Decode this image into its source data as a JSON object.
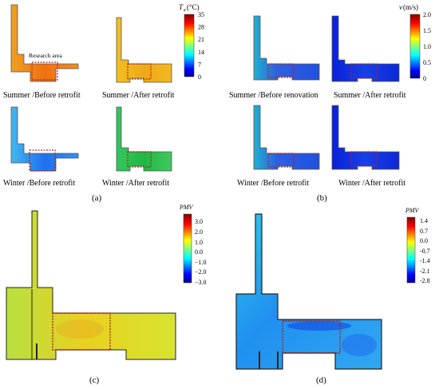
{
  "panel_a": {
    "label": "(a)",
    "research_area_label": "Research area",
    "captions": [
      "Summer /Before retrofit",
      "Summer /After retrofit",
      "Winter /Before retrofit",
      "Winter /After retrofit"
    ],
    "colorbar": {
      "title_var": "T",
      "title_sub": "a",
      "title_unit": " (°C)",
      "ticks": [
        "35",
        "28",
        "21",
        "14",
        "7",
        "0"
      ]
    }
  },
  "panel_b": {
    "label": "(b)",
    "captions": [
      "Summer /Before renovation",
      "Summer /After retrofit",
      "Winter /Before retrofit",
      "Winter /After retrofit"
    ],
    "colorbar": {
      "title_var": "v",
      "title_unit": " (m/s)",
      "ticks": [
        "2.0",
        "1.5",
        "1.0",
        "0.5",
        "0"
      ]
    }
  },
  "panel_c": {
    "label": "(c)",
    "colorbar": {
      "title": "PMV",
      "ticks": [
        "3.0",
        "2.0",
        "1.0",
        "0.0",
        "−1.0",
        "−2.0",
        "−3.0"
      ]
    }
  },
  "panel_d": {
    "label": "(d)",
    "colorbar": {
      "title": "PMV",
      "ticks": [
        "1.4",
        "0.7",
        "0.0",
        "-0.7",
        "-1.4",
        "-2.1",
        "-2.8"
      ]
    }
  },
  "colors": {
    "jet": [
      "#00008f",
      "#0000ff",
      "#0080ff",
      "#00ffff",
      "#80ff80",
      "#ffff00",
      "#ff8000",
      "#ff0000",
      "#800000"
    ],
    "research_box": "#b02020",
    "outline": "#333333"
  }
}
